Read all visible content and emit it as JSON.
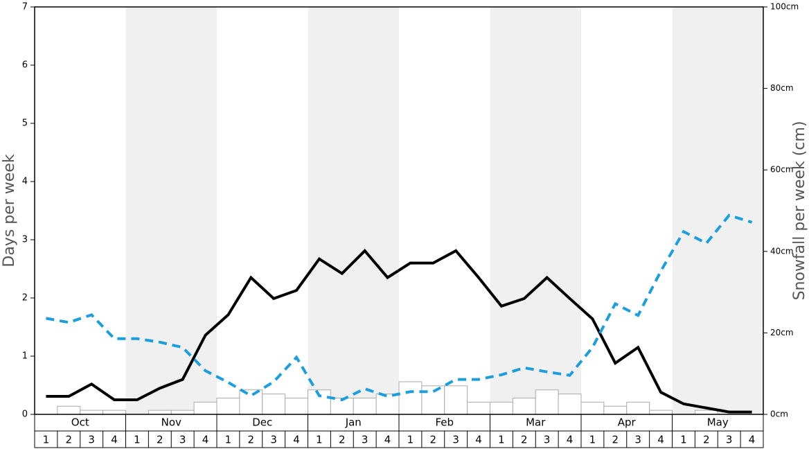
{
  "chart_data": {
    "type": "line",
    "y_label": "Days per week",
    "y2_label": "Snowfall per week (cm)",
    "months": [
      "Oct",
      "Nov",
      "Dec",
      "Jan",
      "Feb",
      "Mar",
      "Apr",
      "May"
    ],
    "categories": [
      "1",
      "2",
      "3",
      "4",
      "1",
      "2",
      "3",
      "4",
      "1",
      "2",
      "3",
      "4",
      "1",
      "2",
      "3",
      "4",
      "1",
      "2",
      "3",
      "4",
      "1",
      "2",
      "3",
      "4",
      "1",
      "2",
      "3",
      "4",
      "1",
      "2",
      "3",
      "4"
    ],
    "ylim": [
      0,
      7
    ],
    "yticks": [
      0,
      1,
      2,
      3,
      4,
      5,
      6,
      7
    ],
    "y2lim": [
      0,
      100
    ],
    "y2ticks": [
      {
        "value": 0,
        "label": "0cm"
      },
      {
        "value": 20,
        "label": "20cm"
      },
      {
        "value": 40,
        "label": "40cm"
      },
      {
        "value": 60,
        "label": "60cm"
      },
      {
        "value": 80,
        "label": "80cm"
      },
      {
        "value": 100,
        "label": "100cm"
      }
    ],
    "bars": {
      "color": "#ffffff",
      "edge_color": "#aaaaaa",
      "axis": "y2",
      "values": [
        0,
        2,
        1,
        1,
        0,
        1,
        1,
        3,
        4,
        6,
        5,
        4,
        6,
        4,
        4,
        5,
        8,
        7,
        7,
        3,
        3,
        4,
        6,
        5,
        3,
        2,
        3,
        1,
        0,
        1,
        0,
        0
      ]
    },
    "series": [
      {
        "color": "#000000",
        "dashed": false,
        "values": [
          0.31,
          0.31,
          0.52,
          0.25,
          0.25,
          0.45,
          0.6,
          1.36,
          1.71,
          2.35,
          1.99,
          2.13,
          2.67,
          2.42,
          2.81,
          2.35,
          2.6,
          2.6,
          2.81,
          2.35,
          1.86,
          1.99,
          2.35,
          1.99,
          1.64,
          0.88,
          1.15,
          0.38,
          0.18,
          0.11,
          0.04,
          0.04
        ]
      },
      {
        "color": "#1a9ee0",
        "dashed": true,
        "values": [
          1.65,
          1.58,
          1.71,
          1.3,
          1.3,
          1.24,
          1.15,
          0.75,
          0.55,
          0.32,
          0.56,
          0.98,
          0.32,
          0.25,
          0.44,
          0.31,
          0.39,
          0.39,
          0.6,
          0.6,
          0.68,
          0.8,
          0.73,
          0.67,
          1.15,
          1.9,
          1.7,
          2.46,
          3.14,
          2.94,
          3.42,
          3.3
        ]
      }
    ]
  }
}
